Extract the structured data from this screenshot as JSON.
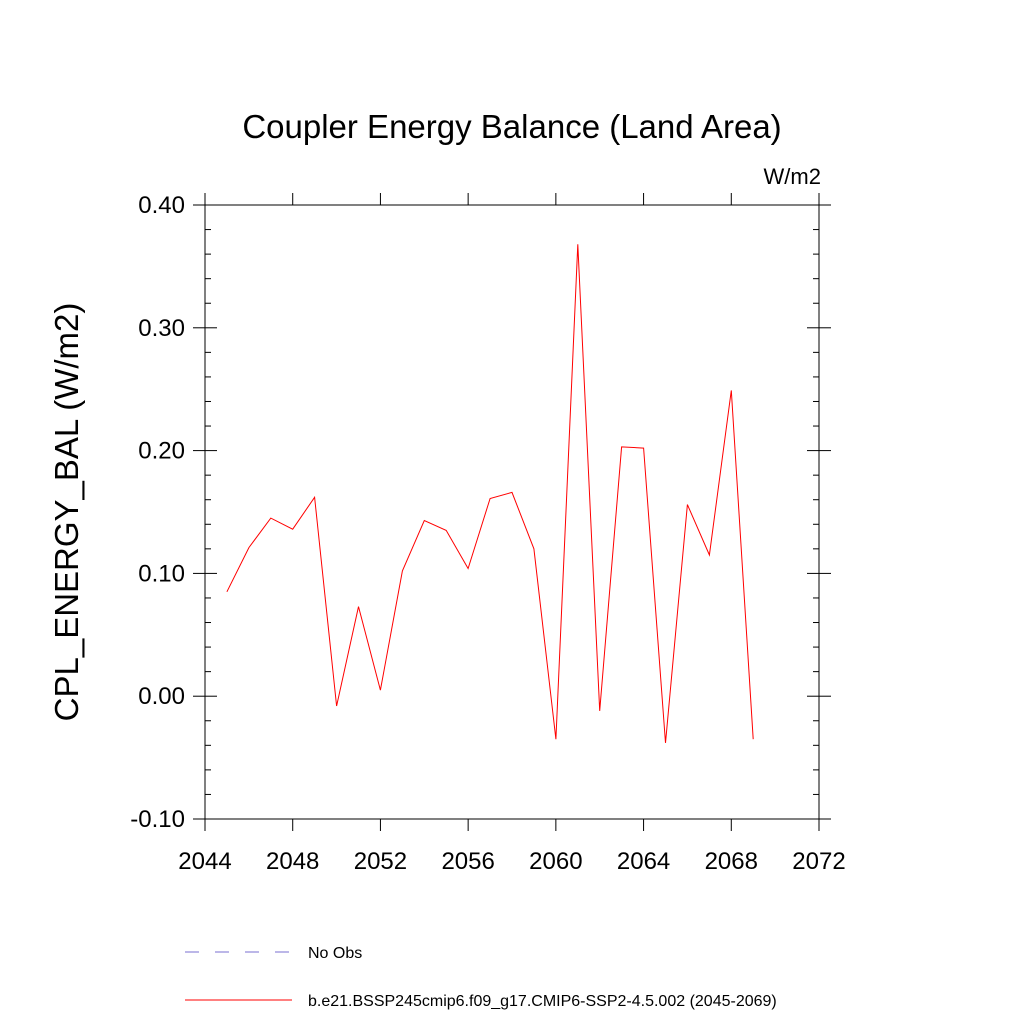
{
  "chart_data": {
    "type": "line",
    "title": "Coupler Energy Balance (Land Area)",
    "units_label": "W/m2",
    "ylabel": "CPL_ENERGY_BAL  (W/m2)",
    "xlabel": "",
    "xlim": [
      2044,
      2072
    ],
    "ylim": [
      -0.1,
      0.4
    ],
    "x_ticks": [
      "2044",
      "2048",
      "2052",
      "2056",
      "2060",
      "2064",
      "2068",
      "2072"
    ],
    "y_ticks": [
      "-0.10",
      "0.00",
      "0.10",
      "0.20",
      "0.30",
      "0.40"
    ],
    "grid": false,
    "legend_position": "bottom",
    "series": [
      {
        "name": "b.e21.BSSP245cmip6.f09_g17.CMIP6-SSP2-4.5.002 (2045-2069)",
        "color": "#ff0000",
        "style": "solid",
        "x": [
          2045,
          2046,
          2047,
          2048,
          2049,
          2050,
          2051,
          2052,
          2053,
          2054,
          2055,
          2056,
          2057,
          2058,
          2059,
          2060,
          2061,
          2062,
          2063,
          2064,
          2065,
          2066,
          2067,
          2068,
          2069
        ],
        "y": [
          0.085,
          0.121,
          0.145,
          0.136,
          0.162,
          -0.008,
          0.073,
          0.005,
          0.102,
          0.143,
          0.135,
          0.104,
          0.161,
          0.166,
          0.12,
          -0.035,
          0.368,
          -0.012,
          0.203,
          0.202,
          -0.038,
          0.156,
          0.115,
          0.249,
          -0.035
        ]
      }
    ],
    "legend": [
      {
        "label": "No Obs",
        "color": "#7a6fd0",
        "style": "dashed"
      },
      {
        "label": "b.e21.BSSP245cmip6.f09_g17.CMIP6-SSP2-4.5.002 (2045-2069)",
        "color": "#ff0000",
        "style": "solid"
      }
    ]
  }
}
